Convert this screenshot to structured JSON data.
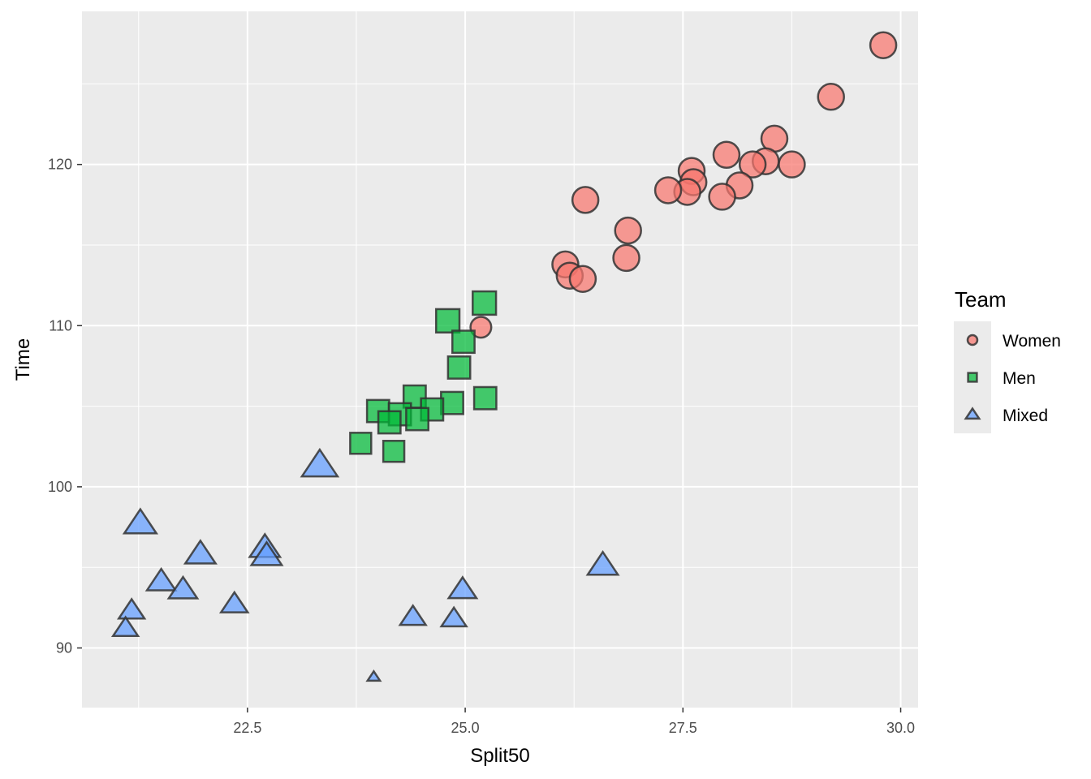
{
  "chart_data": {
    "type": "scatter",
    "xlabel": "Split50",
    "ylabel": "Time",
    "xlim": [
      20.6,
      30.2
    ],
    "ylim": [
      86.3,
      129.5
    ],
    "x_ticks": [
      22.5,
      25.0,
      27.5,
      30.0
    ],
    "x_tick_labels": [
      "22.5",
      "25.0",
      "27.5",
      "30.0"
    ],
    "y_ticks": [
      90,
      100,
      110,
      120
    ],
    "y_tick_labels": [
      "90",
      "100",
      "110",
      "120"
    ],
    "grid": true,
    "legend": {
      "title": "Team",
      "position": "right"
    },
    "series": [
      {
        "name": "Women",
        "shape": "circle",
        "color": "#F8766D",
        "points": [
          {
            "x": 29.8,
            "y": 127.4,
            "size": 1.0
          },
          {
            "x": 29.2,
            "y": 124.2,
            "size": 1.0
          },
          {
            "x": 28.55,
            "y": 121.6,
            "size": 1.0
          },
          {
            "x": 28.75,
            "y": 120.0,
            "size": 1.0
          },
          {
            "x": 28.45,
            "y": 120.2,
            "size": 1.0
          },
          {
            "x": 28.3,
            "y": 120.0,
            "size": 1.0
          },
          {
            "x": 28.0,
            "y": 120.6,
            "size": 1.0
          },
          {
            "x": 28.15,
            "y": 118.7,
            "size": 1.0
          },
          {
            "x": 27.95,
            "y": 118.0,
            "size": 1.0
          },
          {
            "x": 27.6,
            "y": 119.6,
            "size": 1.0
          },
          {
            "x": 27.62,
            "y": 118.9,
            "size": 1.0
          },
          {
            "x": 27.55,
            "y": 118.3,
            "size": 1.0
          },
          {
            "x": 27.33,
            "y": 118.4,
            "size": 1.0
          },
          {
            "x": 26.38,
            "y": 117.8,
            "size": 1.0
          },
          {
            "x": 26.87,
            "y": 115.9,
            "size": 1.0
          },
          {
            "x": 26.85,
            "y": 114.2,
            "size": 1.0
          },
          {
            "x": 26.15,
            "y": 113.8,
            "size": 1.0
          },
          {
            "x": 26.2,
            "y": 113.1,
            "size": 1.0
          },
          {
            "x": 26.35,
            "y": 112.9,
            "size": 1.0
          },
          {
            "x": 25.18,
            "y": 109.9,
            "size": 0.8
          }
        ]
      },
      {
        "name": "Men",
        "shape": "square",
        "color": "#00BA38",
        "points": [
          {
            "x": 25.22,
            "y": 111.4,
            "size": 1.0
          },
          {
            "x": 24.8,
            "y": 110.3,
            "size": 1.0
          },
          {
            "x": 24.98,
            "y": 109.0,
            "size": 0.95
          },
          {
            "x": 24.93,
            "y": 107.4,
            "size": 0.95
          },
          {
            "x": 25.23,
            "y": 105.5,
            "size": 0.95
          },
          {
            "x": 24.85,
            "y": 105.2,
            "size": 0.95
          },
          {
            "x": 24.42,
            "y": 105.6,
            "size": 0.95
          },
          {
            "x": 24.62,
            "y": 104.8,
            "size": 0.95
          },
          {
            "x": 24.0,
            "y": 104.7,
            "size": 0.95
          },
          {
            "x": 24.25,
            "y": 104.5,
            "size": 0.95
          },
          {
            "x": 24.45,
            "y": 104.2,
            "size": 0.95
          },
          {
            "x": 24.13,
            "y": 104.0,
            "size": 0.95
          },
          {
            "x": 23.8,
            "y": 102.7,
            "size": 0.9
          },
          {
            "x": 24.18,
            "y": 102.2,
            "size": 0.9
          }
        ]
      },
      {
        "name": "Mixed",
        "shape": "triangle",
        "color": "#619CFF",
        "points": [
          {
            "x": 23.33,
            "y": 101.3,
            "size": 1.0
          },
          {
            "x": 21.27,
            "y": 97.7,
            "size": 0.9
          },
          {
            "x": 22.7,
            "y": 96.2,
            "size": 0.85
          },
          {
            "x": 22.72,
            "y": 95.7,
            "size": 0.85
          },
          {
            "x": 21.96,
            "y": 95.8,
            "size": 0.85
          },
          {
            "x": 26.58,
            "y": 95.1,
            "size": 0.85
          },
          {
            "x": 21.51,
            "y": 94.1,
            "size": 0.8
          },
          {
            "x": 21.76,
            "y": 93.6,
            "size": 0.8
          },
          {
            "x": 24.97,
            "y": 93.6,
            "size": 0.78
          },
          {
            "x": 22.35,
            "y": 92.7,
            "size": 0.75
          },
          {
            "x": 21.17,
            "y": 92.3,
            "size": 0.72
          },
          {
            "x": 24.4,
            "y": 91.9,
            "size": 0.72
          },
          {
            "x": 24.87,
            "y": 91.8,
            "size": 0.7
          },
          {
            "x": 21.1,
            "y": 91.2,
            "size": 0.7
          },
          {
            "x": 23.95,
            "y": 88.2,
            "size": 0.35
          }
        ]
      }
    ]
  },
  "colors": {
    "panel_background": "#EBEBEB",
    "grid_major": "#FFFFFF",
    "point_outline": "#333333"
  }
}
